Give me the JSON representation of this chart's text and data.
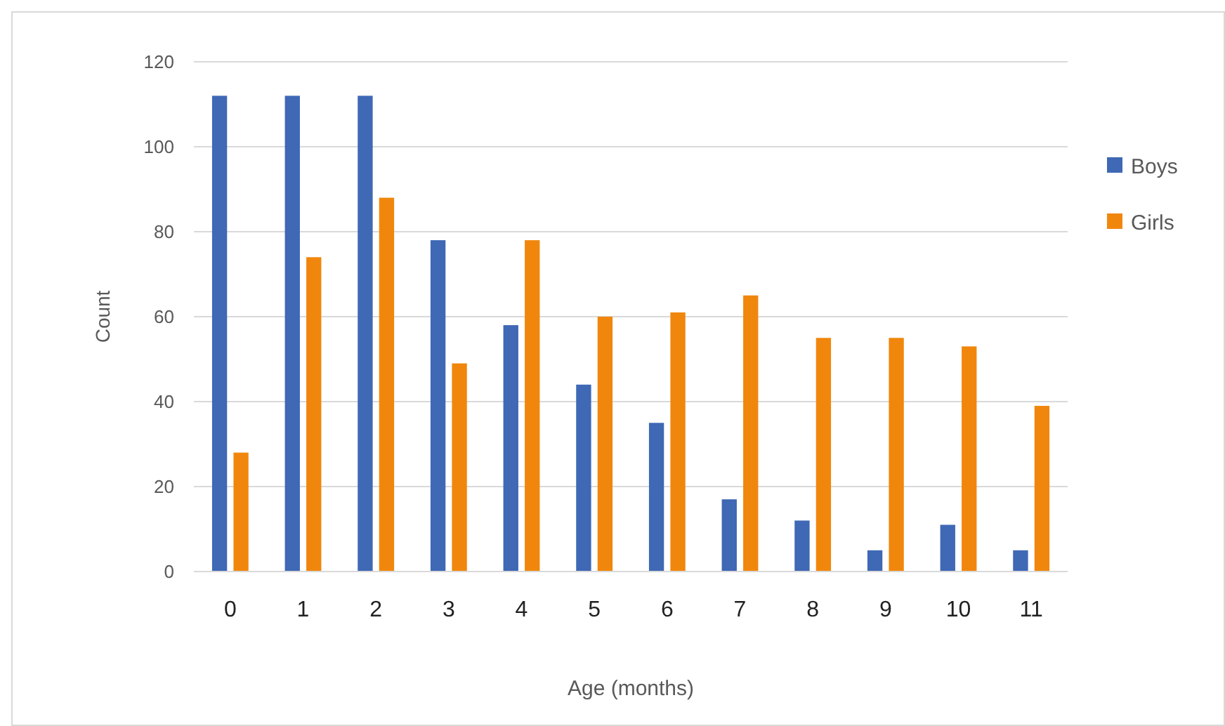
{
  "chart_data": {
    "type": "bar",
    "xlabel": "Age (months)",
    "ylabel": "Count",
    "categories": [
      "0",
      "1",
      "2",
      "3",
      "4",
      "5",
      "6",
      "7",
      "8",
      "9",
      "10",
      "11"
    ],
    "series": [
      {
        "name": "Boys",
        "color": "#3f68b5",
        "values": [
          112,
          112,
          112,
          78,
          58,
          44,
          35,
          17,
          12,
          5,
          11,
          5
        ]
      },
      {
        "name": "Girls",
        "color": "#f0870c",
        "values": [
          28,
          74,
          88,
          49,
          78,
          60,
          61,
          65,
          55,
          55,
          53,
          39
        ]
      }
    ],
    "ylim": [
      0,
      120
    ],
    "yticks": [
      0,
      20,
      40,
      60,
      80,
      100,
      120
    ],
    "grid": "y",
    "legend": "right"
  }
}
